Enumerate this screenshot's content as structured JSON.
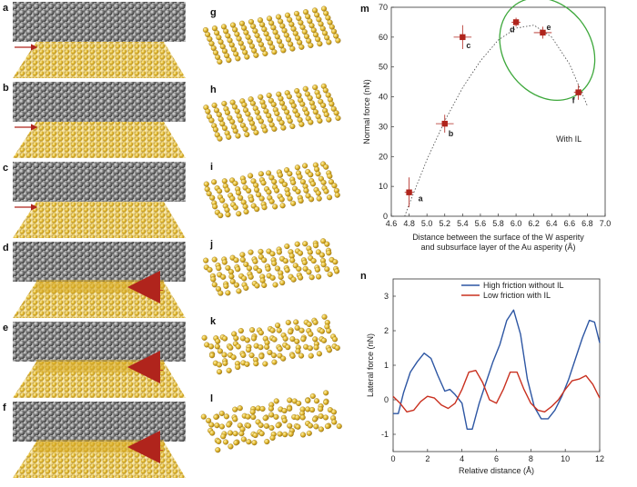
{
  "panel_letters": {
    "a": "a",
    "b": "b",
    "c": "c",
    "d": "d",
    "e": "e",
    "f": "f",
    "g": "g",
    "h": "h",
    "i": "i",
    "j": "j",
    "k": "k",
    "l": "l",
    "m": "m",
    "n": "n"
  },
  "il_label": "IL",
  "colors": {
    "tungsten_atom": "#6f6f6f",
    "gold_atom": "#e1b72e",
    "arrow": "#b0241c",
    "marker": "#b0241c",
    "ellipse": "#3ea83c",
    "series_high": "#2d56a3",
    "series_low": "#c9301f"
  },
  "chart_data": [
    {
      "panel": "m",
      "type": "scatter",
      "xlabel": "Distance between the surface of the W asperity",
      "xlabel2": "and subsurface layer of the Au asperity (Å)",
      "ylabel": "Normal force (nN)",
      "xlim": [
        4.6,
        7.0
      ],
      "ylim": [
        0,
        70
      ],
      "xticks": [
        "4.6",
        "4.8",
        "5.0",
        "5.2",
        "5.4",
        "5.6",
        "5.8",
        "6.0",
        "6.2",
        "6.4",
        "6.6",
        "6.8",
        "7.0"
      ],
      "yticks": [
        "0",
        "10",
        "20",
        "30",
        "40",
        "50",
        "60",
        "70"
      ],
      "annotation": "With IL",
      "points": [
        {
          "label": "a",
          "x": 4.8,
          "y": 8,
          "xerr": 0.05,
          "yerr": 5
        },
        {
          "label": "b",
          "x": 5.2,
          "y": 31,
          "xerr": 0.1,
          "yerr": 3
        },
        {
          "label": "c",
          "x": 5.4,
          "y": 60,
          "xerr": 0.1,
          "yerr": 4
        },
        {
          "label": "d",
          "x": 6.0,
          "y": 65,
          "xerr": 0.05,
          "yerr": 1.5
        },
        {
          "label": "e",
          "x": 6.3,
          "y": 61.5,
          "xerr": 0.1,
          "yerr": 2
        },
        {
          "label": "f",
          "x": 6.7,
          "y": 41.5,
          "xerr": 0.05,
          "yerr": 2.5
        }
      ],
      "fit_curve": {
        "style": "dotted",
        "x": [
          4.75,
          4.8,
          5.0,
          5.2,
          5.4,
          5.6,
          5.8,
          6.0,
          6.2,
          6.4,
          6.6,
          6.8
        ],
        "y": [
          0,
          4,
          19,
          32,
          43,
          52,
          59,
          63,
          64,
          60,
          51,
          37
        ]
      }
    },
    {
      "panel": "n",
      "type": "line",
      "xlabel": "Relative distance (Å)",
      "ylabel": "Lateral force (nN)",
      "xlim": [
        0,
        12
      ],
      "ylim": [
        -1.5,
        3.5
      ],
      "xticks": [
        "0",
        "2",
        "4",
        "6",
        "8",
        "10",
        "12"
      ],
      "yticks": [
        "-1",
        "0",
        "1",
        "2",
        "3"
      ],
      "legend_position": "top-right",
      "series": [
        {
          "name": "High friction without IL",
          "x": [
            0,
            0.3,
            0.6,
            1.0,
            1.4,
            1.8,
            2.2,
            2.6,
            3.0,
            3.3,
            3.6,
            4.0,
            4.3,
            4.6,
            5.0,
            5.4,
            5.8,
            6.2,
            6.6,
            7.0,
            7.4,
            7.8,
            8.2,
            8.6,
            9.0,
            9.4,
            9.8,
            10.2,
            10.6,
            11.0,
            11.4,
            11.7,
            12.0
          ],
          "y": [
            -0.4,
            -0.4,
            0.2,
            0.8,
            1.1,
            1.35,
            1.2,
            0.7,
            0.25,
            0.3,
            0.15,
            -0.1,
            -0.85,
            -0.85,
            -0.1,
            0.5,
            1.1,
            1.6,
            2.3,
            2.6,
            1.9,
            0.6,
            -0.2,
            -0.55,
            -0.55,
            -0.3,
            0.1,
            0.6,
            1.2,
            1.8,
            2.3,
            2.25,
            1.65
          ]
        },
        {
          "name": "Low friction with IL",
          "x": [
            0,
            0.4,
            0.8,
            1.2,
            1.6,
            2.0,
            2.4,
            2.8,
            3.2,
            3.6,
            4.0,
            4.4,
            4.8,
            5.2,
            5.6,
            6.0,
            6.4,
            6.8,
            7.2,
            7.6,
            8.0,
            8.4,
            8.8,
            9.2,
            9.6,
            10.0,
            10.4,
            10.8,
            11.2,
            11.6,
            12.0
          ],
          "y": [
            0.1,
            -0.1,
            -0.35,
            -0.3,
            -0.05,
            0.1,
            0.05,
            -0.15,
            -0.25,
            -0.1,
            0.3,
            0.8,
            0.85,
            0.5,
            0.0,
            -0.1,
            0.3,
            0.8,
            0.8,
            0.3,
            -0.1,
            -0.3,
            -0.35,
            -0.2,
            0.0,
            0.3,
            0.55,
            0.6,
            0.7,
            0.45,
            0.05
          ]
        }
      ]
    }
  ]
}
